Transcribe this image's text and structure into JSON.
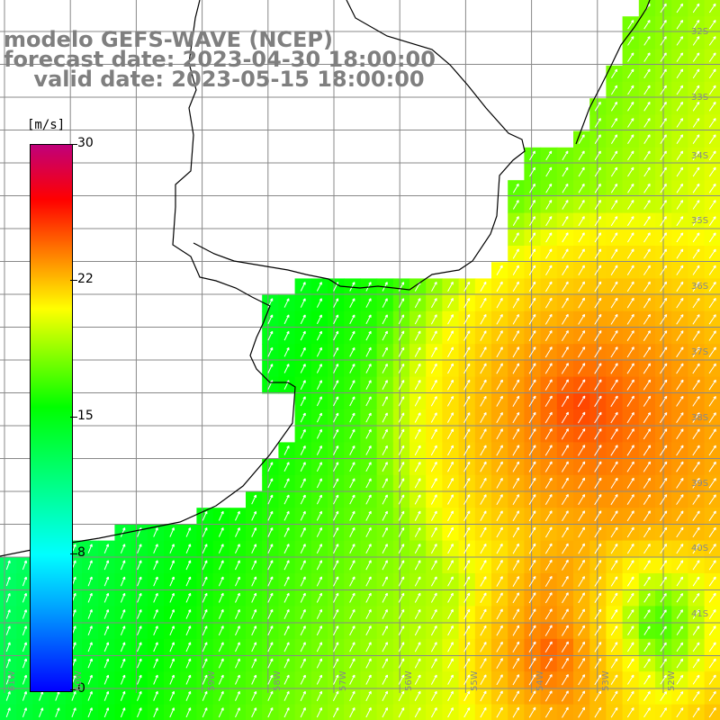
{
  "header": {
    "model": "modelo GEFS-WAVE (NCEP)",
    "forecast": "forecast date: 2023-04-30 18:00:00",
    "valid": "    valid date: 2023-05-15 18:00:00"
  },
  "colorbar": {
    "unit": "[m/s]",
    "ticks": [
      "30",
      "22",
      "15",
      "8",
      "0"
    ]
  },
  "grid": {
    "lat_labels": [
      "32S",
      "33S",
      "34S",
      "35S",
      "36S",
      "37S",
      "38S",
      "39S",
      "40S",
      "41S"
    ],
    "lon_labels": [
      "61W",
      "60W",
      "59W",
      "58W",
      "57W",
      "56W",
      "55W",
      "54W",
      "53W",
      "52W",
      "51W"
    ]
  },
  "colors": {
    "land": "#ffffff",
    "gridline": "#888888",
    "coast": "#000000",
    "arrows": "#ffffff"
  }
}
